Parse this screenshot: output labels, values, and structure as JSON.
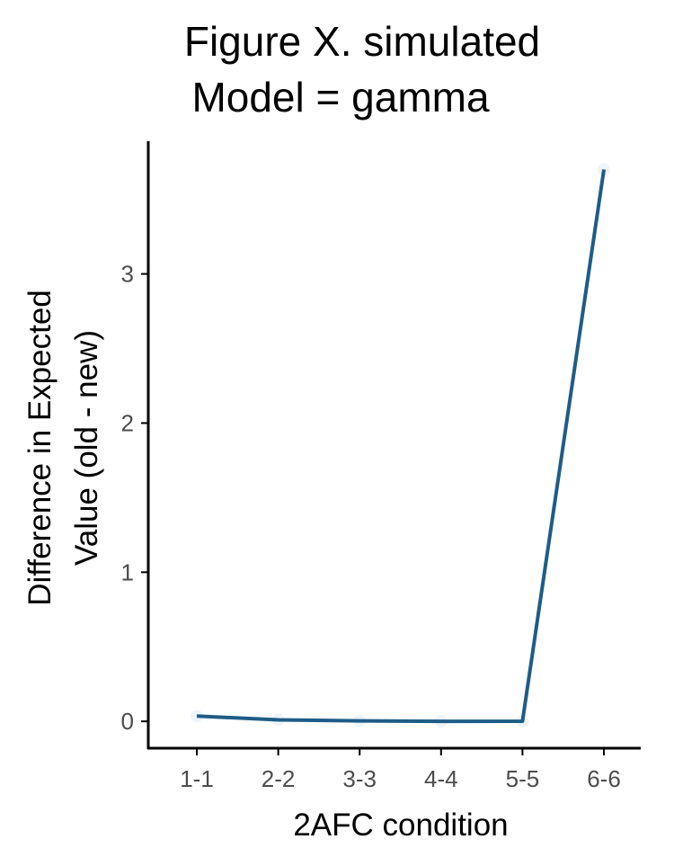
{
  "chart_data": {
    "type": "line",
    "title": [
      "Figure X. simulated",
      "Model = gamma"
    ],
    "xlabel": "2AFC condition",
    "ylabel": [
      "Difference in Expected",
      "Value (old - new)"
    ],
    "categories": [
      "1-1",
      "2-2",
      "3-3",
      "4-4",
      "5-5",
      "6-6"
    ],
    "ylim": [
      -0.18,
      3.89
    ],
    "yticks": [
      0,
      1,
      2,
      3
    ],
    "grid": false,
    "legend": "none",
    "series": [
      {
        "values": [
          0.035,
          0.01,
          0.003,
          0.0,
          0.001,
          3.7
        ],
        "line_color": "#1f5c87",
        "point_color": "#eef4fa"
      }
    ]
  }
}
